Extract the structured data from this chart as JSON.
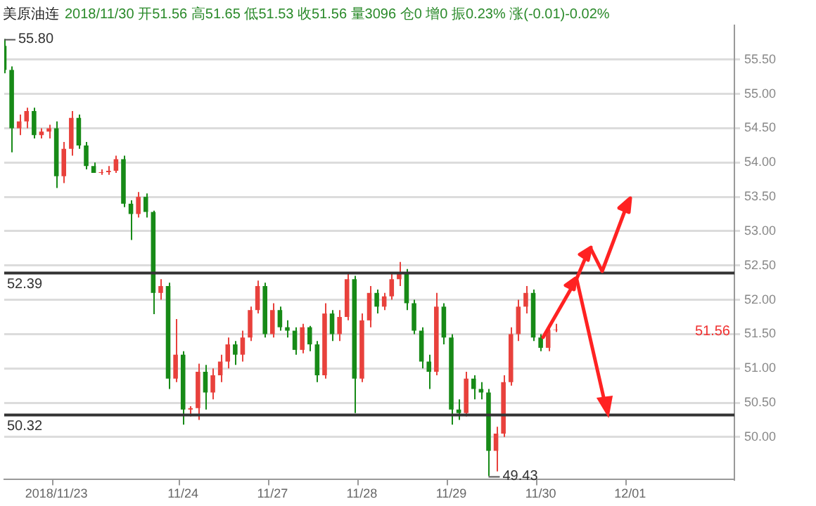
{
  "chart_data": {
    "type": "candlestick",
    "title": "美原油连",
    "subtitle": "2018/11/30 开51.56 高51.65 低51.53 收51.56 量3096 仓0 增0 振0.23% 涨(-0.01)-0.02%",
    "categories": [
      null,
      null,
      null,
      null,
      null,
      null,
      null,
      "2018/11/23",
      null,
      null,
      null,
      null,
      null,
      null,
      null,
      null,
      null,
      null,
      null,
      null,
      null,
      null,
      null,
      null,
      "11/24",
      null,
      null,
      null,
      null,
      null,
      null,
      null,
      null,
      null,
      null,
      null,
      "11/27",
      null,
      null,
      null,
      null,
      null,
      null,
      null,
      null,
      null,
      null,
      null,
      "11/28",
      null,
      null,
      null,
      null,
      null,
      null,
      null,
      null,
      null,
      null,
      null,
      "11/29",
      null,
      null,
      null,
      null,
      null,
      null,
      null,
      null,
      null,
      null,
      null,
      "11/30",
      null,
      null,
      null,
      null,
      null,
      null,
      null,
      null,
      null,
      null,
      null,
      "12/01",
      null,
      null,
      null,
      null,
      null,
      null,
      null,
      null,
      null,
      null,
      null,
      null,
      null,
      null
    ],
    "ohlc": [
      [
        55.7,
        55.8,
        55.3,
        55.35
      ],
      [
        55.35,
        55.4,
        54.15,
        54.5
      ],
      [
        54.5,
        54.7,
        54.4,
        54.6
      ],
      [
        54.6,
        54.8,
        54.5,
        54.75
      ],
      [
        54.75,
        54.8,
        54.35,
        54.4
      ],
      [
        54.4,
        54.5,
        54.35,
        54.45
      ],
      [
        54.45,
        54.55,
        54.35,
        54.5
      ],
      [
        54.5,
        54.6,
        53.63,
        53.8
      ],
      [
        53.8,
        54.3,
        53.7,
        54.2
      ],
      [
        54.2,
        54.75,
        54.1,
        54.65
      ],
      [
        54.65,
        54.7,
        54.2,
        54.25
      ],
      [
        54.25,
        54.3,
        53.9,
        53.95
      ],
      [
        53.95,
        54.0,
        53.85,
        53.85
      ],
      [
        53.85,
        53.9,
        53.82,
        53.86
      ],
      [
        53.86,
        53.95,
        53.82,
        53.88
      ],
      [
        53.88,
        54.1,
        53.85,
        54.05
      ],
      [
        54.05,
        54.1,
        53.35,
        53.4
      ],
      [
        53.4,
        53.45,
        52.87,
        53.25
      ],
      [
        53.25,
        53.57,
        53.2,
        53.5
      ],
      [
        53.5,
        53.55,
        53.2,
        53.28
      ],
      [
        53.28,
        53.3,
        51.79,
        52.1
      ],
      [
        52.1,
        52.3,
        52.0,
        52.2
      ],
      [
        52.2,
        52.25,
        50.7,
        50.85
      ],
      [
        50.85,
        51.72,
        50.8,
        51.2
      ],
      [
        51.2,
        51.25,
        50.18,
        50.4
      ],
      [
        50.4,
        50.45,
        50.3,
        50.42
      ],
      [
        50.42,
        51.07,
        50.25,
        50.95
      ],
      [
        50.95,
        51.05,
        50.4,
        50.65
      ],
      [
        50.65,
        51.0,
        50.55,
        50.9
      ],
      [
        50.9,
        51.2,
        50.8,
        51.1
      ],
      [
        51.1,
        51.45,
        51.0,
        51.35
      ],
      [
        51.35,
        51.4,
        51.05,
        51.2
      ],
      [
        51.2,
        51.55,
        51.1,
        51.45
      ],
      [
        51.45,
        51.9,
        51.4,
        51.85
      ],
      [
        51.85,
        52.28,
        51.8,
        52.2
      ],
      [
        52.2,
        52.25,
        51.45,
        51.5
      ],
      [
        51.5,
        51.95,
        51.45,
        51.85
      ],
      [
        51.85,
        51.9,
        51.55,
        51.6
      ],
      [
        51.6,
        51.7,
        51.45,
        51.55
      ],
      [
        51.55,
        51.6,
        51.2,
        51.27
      ],
      [
        51.27,
        51.65,
        51.22,
        51.6
      ],
      [
        51.6,
        51.62,
        51.25,
        51.35
      ],
      [
        51.35,
        51.4,
        50.8,
        50.9
      ],
      [
        50.9,
        51.95,
        50.85,
        51.8
      ],
      [
        51.8,
        51.85,
        51.4,
        51.5
      ],
      [
        51.5,
        51.85,
        51.4,
        51.75
      ],
      [
        51.75,
        52.4,
        51.7,
        52.3
      ],
      [
        52.3,
        52.35,
        50.35,
        50.85
      ],
      [
        50.85,
        51.8,
        50.8,
        51.7
      ],
      [
        51.7,
        52.2,
        51.6,
        52.1
      ],
      [
        52.1,
        52.15,
        51.8,
        51.9
      ],
      [
        51.9,
        52.1,
        51.85,
        52.05
      ],
      [
        52.05,
        52.4,
        52.0,
        52.3
      ],
      [
        52.3,
        52.55,
        52.2,
        52.4
      ],
      [
        52.4,
        52.45,
        51.85,
        51.95
      ],
      [
        51.95,
        52.0,
        51.5,
        51.55
      ],
      [
        51.55,
        51.6,
        51.0,
        51.1
      ],
      [
        51.1,
        51.2,
        50.7,
        50.95
      ],
      [
        50.95,
        52.1,
        50.9,
        51.9
      ],
      [
        51.9,
        51.95,
        51.35,
        51.45
      ],
      [
        51.45,
        51.5,
        50.18,
        50.4
      ],
      [
        50.4,
        50.55,
        50.25,
        50.35
      ],
      [
        50.35,
        50.95,
        50.3,
        50.85
      ],
      [
        50.85,
        50.9,
        50.55,
        50.7
      ],
      [
        50.7,
        50.8,
        50.55,
        50.65
      ],
      [
        50.65,
        50.7,
        49.43,
        49.8
      ],
      [
        49.8,
        50.15,
        49.5,
        50.05
      ],
      [
        50.05,
        50.9,
        50.0,
        50.8
      ],
      [
        50.8,
        51.6,
        50.75,
        51.5
      ],
      [
        51.5,
        52.0,
        51.4,
        51.9
      ],
      [
        51.9,
        52.2,
        51.8,
        52.1
      ],
      [
        52.1,
        52.15,
        51.4,
        51.45
      ],
      [
        51.45,
        51.5,
        51.25,
        51.3
      ],
      [
        51.3,
        51.6,
        51.25,
        51.56
      ],
      [
        51.56,
        51.65,
        51.53,
        51.56
      ],
      null,
      null,
      null,
      null,
      null,
      null,
      null,
      null,
      null,
      null,
      null,
      null,
      null,
      null,
      null,
      null,
      null,
      null,
      null,
      null,
      null,
      null,
      null,
      null
    ],
    "colors": [
      "#178a17",
      "#178a17",
      "#e8413c",
      "#e8413c",
      "#178a17",
      "#e8413c",
      "#e8413c",
      "#178a17",
      "#e8413c",
      "#e8413c",
      "#178a17",
      "#178a17",
      "#178a17",
      "#e8413c",
      "#e8413c",
      "#e8413c",
      "#178a17",
      "#178a17",
      "#e8413c",
      "#178a17",
      "#178a17",
      "#e8413c",
      "#178a17",
      "#e8413c",
      "#178a17",
      "#e8413c",
      "#e8413c",
      "#178a17",
      "#e8413c",
      "#e8413c",
      "#e8413c",
      "#178a17",
      "#e8413c",
      "#e8413c",
      "#e8413c",
      "#178a17",
      "#e8413c",
      "#178a17",
      "#178a17",
      "#178a17",
      "#e8413c",
      "#178a17",
      "#178a17",
      "#e8413c",
      "#178a17",
      "#e8413c",
      "#e8413c",
      "#178a17",
      "#e8413c",
      "#e8413c",
      "#178a17",
      "#e8413c",
      "#e8413c",
      "#e8413c",
      "#178a17",
      "#178a17",
      "#178a17",
      "#178a17",
      "#e8413c",
      "#178a17",
      "#178a17",
      "#178a17",
      "#e8413c",
      "#178a17",
      "#178a17",
      "#178a17",
      "#e8413c",
      "#e8413c",
      "#e8413c",
      "#e8413c",
      "#e8413c",
      "#178a17",
      "#178a17",
      "#e8413c",
      "#e8413c",
      null,
      null,
      null,
      null,
      null,
      null,
      null,
      null,
      null,
      null,
      null,
      null,
      null,
      null,
      null,
      null,
      null,
      null,
      null,
      null,
      null,
      null,
      null,
      null
    ],
    "ylim": [
      49.38,
      56.0
    ],
    "yticks": [
      {
        "value": 50,
        "label": "50.00"
      },
      {
        "value": 50.5,
        "label": "50.50"
      },
      {
        "value": 51,
        "label": "51.00"
      },
      {
        "value": 51.5,
        "label": "51.50"
      },
      {
        "value": 52,
        "label": "52.00"
      },
      {
        "value": 52.5,
        "label": "52.50"
      },
      {
        "value": 53,
        "label": "53.00"
      },
      {
        "value": 53.5,
        "label": "53.50"
      },
      {
        "value": 54,
        "label": "54.00"
      },
      {
        "value": 54.5,
        "label": "54.50"
      },
      {
        "value": 55,
        "label": "55.00"
      },
      {
        "value": 55.5,
        "label": "55.50"
      }
    ],
    "grid": "y",
    "ref_lines": [
      {
        "axis": "y",
        "value": 52.39,
        "label": "52.39",
        "color": "#333333"
      },
      {
        "axis": "y",
        "value": 50.32,
        "label": "50.32",
        "color": "#333333"
      }
    ],
    "annotations": [
      "55.80",
      "49.43",
      "51.56"
    ]
  }
}
